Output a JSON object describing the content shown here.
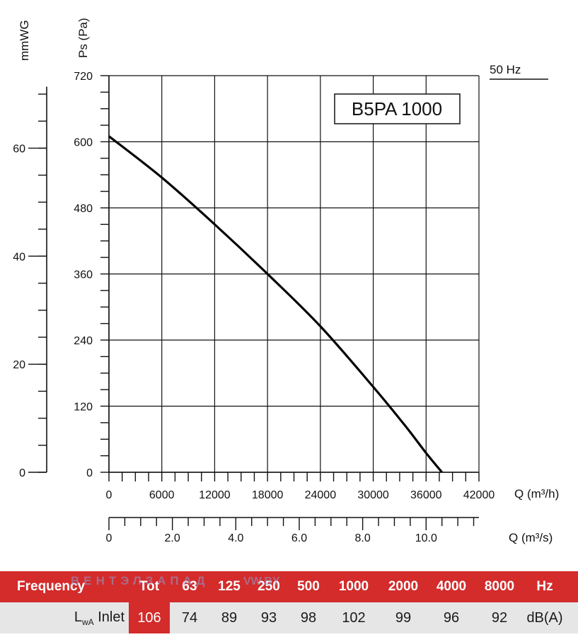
{
  "chart_data": {
    "type": "line",
    "title": "B5PA 1000",
    "frequency_label": "50 Hz",
    "ylabel": "Ps (Pa)",
    "ylabel_secondary": "mmWG",
    "xlabel": "Q (m³/h)",
    "xlabel_secondary": "Q (m³/s)",
    "xlim": [
      0,
      42000
    ],
    "ylim": [
      0,
      720
    ],
    "x_ticks": [
      "0",
      "6000",
      "12000",
      "18000",
      "24000",
      "30000",
      "36000",
      "42000"
    ],
    "y_ticks": [
      "0",
      "120",
      "240",
      "360",
      "480",
      "600",
      "720"
    ],
    "secondary_y_ticks": [
      "0",
      "20",
      "40",
      "60"
    ],
    "secondary_x_ticks": [
      "0",
      "2.0",
      "4.0",
      "6.0",
      "8.0",
      "10.0"
    ],
    "grid": true,
    "series": [
      {
        "x": [
          0,
          6000,
          12000,
          18000,
          24000,
          30000,
          33600,
          36000,
          37800
        ],
        "y": [
          610,
          535,
          450,
          360,
          265,
          155,
          85,
          35,
          0
        ]
      }
    ]
  },
  "table": {
    "header": [
      "Frequency",
      "Tot",
      "63",
      "125",
      "250",
      "500",
      "1000",
      "2000",
      "4000",
      "8000",
      "Hz"
    ],
    "row_label": "L",
    "row_label_sub": "wA",
    "row_label_suffix": " Inlet",
    "values": [
      "106",
      "74",
      "89",
      "93",
      "98",
      "102",
      "99",
      "96",
      "92",
      "dB(A)"
    ]
  },
  "watermark": {
    "text1": "ВЕНТЭЛЗАПАД",
    "text2": "VW.BY"
  }
}
